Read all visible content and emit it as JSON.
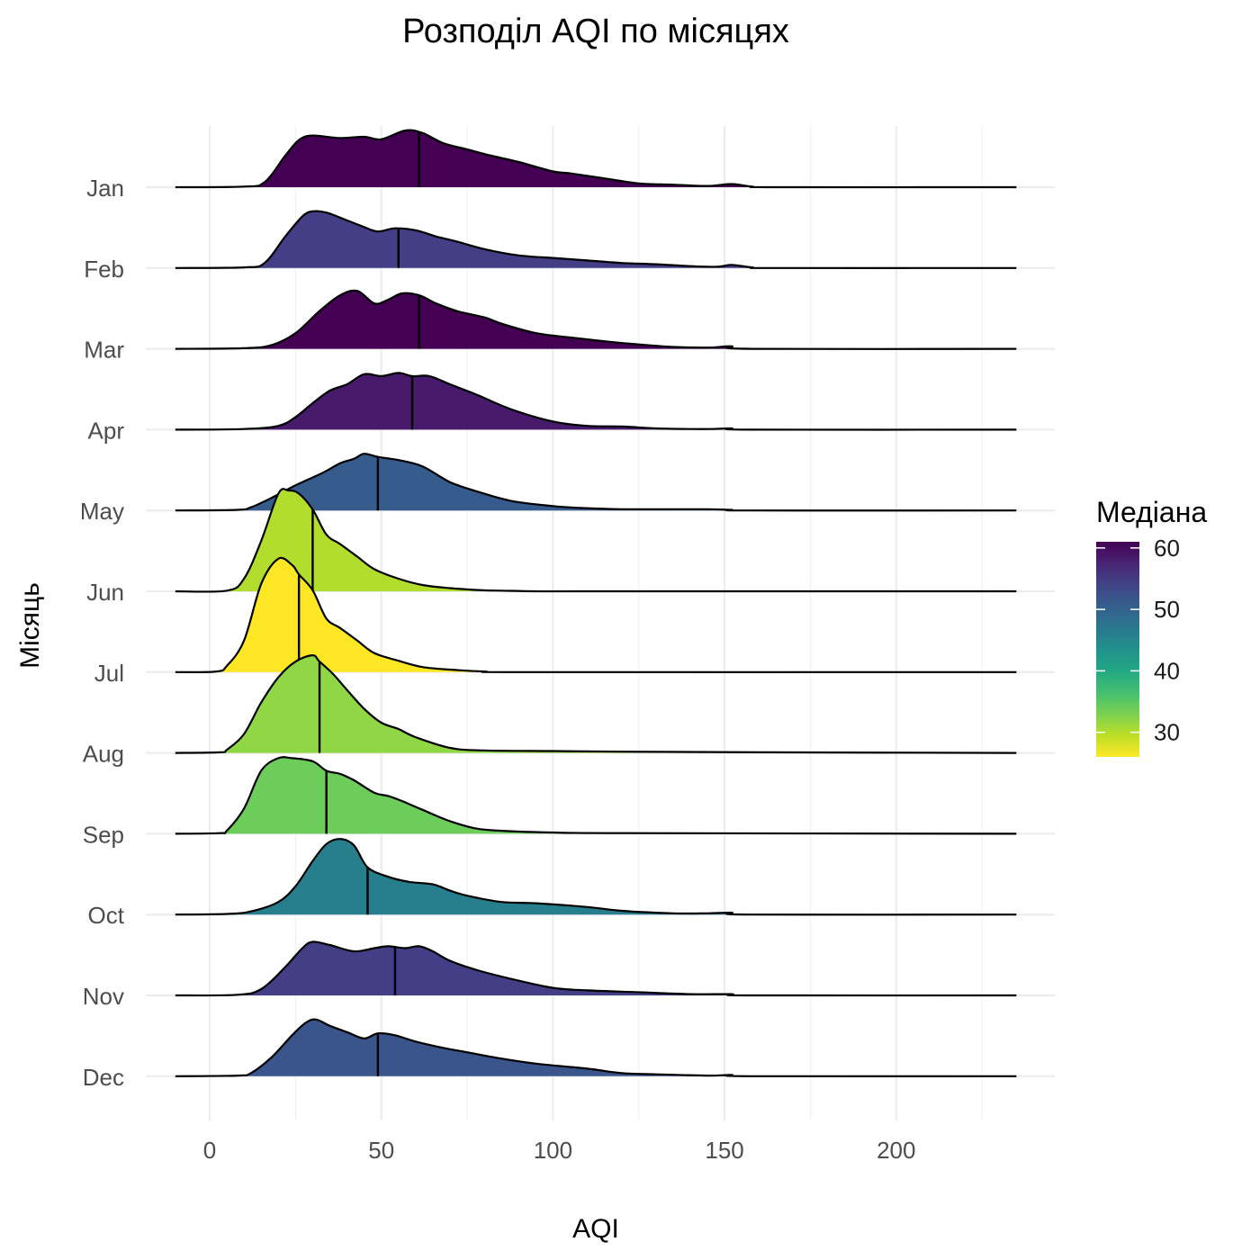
{
  "chart_data": {
    "type": "ridgeline",
    "title": "Розподіл AQI по місяцях",
    "xlabel": "AQI",
    "ylabel": "Місяць",
    "x_ticks": [
      0,
      50,
      100,
      150,
      200
    ],
    "xlim": [
      -10,
      235
    ],
    "grid": true,
    "legend": {
      "title": "Медіана",
      "position": "right",
      "ticks": [
        60,
        50,
        40,
        30
      ],
      "range": [
        26,
        61
      ],
      "palette": "viridis (reversed: high = dark purple, low = yellow)"
    },
    "series": [
      {
        "name": "Jan",
        "median": 61,
        "fill": "#440154",
        "x": [
          -10,
          10,
          16,
          22,
          26,
          30,
          38,
          45,
          50,
          57,
          62,
          68,
          75,
          82,
          90,
          100,
          105,
          115,
          125,
          135,
          145,
          152,
          158,
          165,
          235
        ],
        "y": [
          0,
          0.01,
          0.08,
          0.5,
          0.75,
          0.82,
          0.78,
          0.8,
          0.76,
          0.9,
          0.86,
          0.7,
          0.6,
          0.5,
          0.4,
          0.25,
          0.22,
          0.14,
          0.06,
          0.04,
          0.02,
          0.05,
          0.01,
          0,
          0
        ]
      },
      {
        "name": "Feb",
        "median": 55,
        "fill": "#433e85",
        "x": [
          -10,
          10,
          16,
          22,
          27,
          30,
          34,
          38,
          45,
          49,
          54,
          60,
          66,
          72,
          80,
          90,
          100,
          110,
          120,
          130,
          140,
          148,
          152,
          158,
          165,
          235
        ],
        "y": [
          0,
          0.01,
          0.08,
          0.5,
          0.82,
          0.9,
          0.88,
          0.8,
          0.65,
          0.58,
          0.63,
          0.6,
          0.5,
          0.42,
          0.3,
          0.2,
          0.16,
          0.12,
          0.08,
          0.06,
          0.03,
          0.02,
          0.05,
          0.01,
          0,
          0
        ]
      },
      {
        "name": "Mar",
        "median": 61,
        "fill": "#440154",
        "x": [
          -10,
          10,
          18,
          25,
          32,
          38,
          43,
          48,
          52,
          56,
          61,
          66,
          72,
          80,
          85,
          95,
          105,
          115,
          125,
          135,
          145,
          152,
          158,
          235
        ],
        "y": [
          0,
          0.01,
          0.06,
          0.25,
          0.6,
          0.85,
          0.92,
          0.72,
          0.78,
          0.88,
          0.85,
          0.72,
          0.6,
          0.5,
          0.4,
          0.25,
          0.18,
          0.12,
          0.07,
          0.03,
          0.02,
          0.04,
          0,
          0
        ]
      },
      {
        "name": "Apr",
        "median": 59,
        "fill": "#481a6c",
        "x": [
          -10,
          10,
          20,
          25,
          30,
          35,
          40,
          45,
          50,
          55,
          59,
          64,
          70,
          78,
          88,
          100,
          110,
          120,
          130,
          140,
          146,
          152,
          158,
          235
        ],
        "y": [
          0,
          0.01,
          0.06,
          0.2,
          0.42,
          0.62,
          0.72,
          0.88,
          0.85,
          0.9,
          0.85,
          0.85,
          0.72,
          0.55,
          0.32,
          0.13,
          0.06,
          0.05,
          0.02,
          0.01,
          0.01,
          0.02,
          0,
          0
        ]
      },
      {
        "name": "May",
        "median": 49,
        "fill": "#365c8d",
        "x": [
          -10,
          8,
          12,
          18,
          25,
          33,
          38,
          42,
          45,
          49,
          55,
          62,
          70,
          78,
          88,
          100,
          108,
          120,
          135,
          145,
          152,
          158,
          235
        ],
        "y": [
          0,
          0.01,
          0.05,
          0.2,
          0.4,
          0.6,
          0.75,
          0.82,
          0.9,
          0.85,
          0.8,
          0.7,
          0.45,
          0.3,
          0.15,
          0.07,
          0.04,
          0.02,
          0.02,
          0.02,
          0.01,
          0,
          0
        ]
      },
      {
        "name": "Jun",
        "median": 30,
        "fill": "#b2dd2d",
        "x": [
          -10,
          5,
          10,
          15,
          20,
          23,
          26,
          30,
          34,
          38,
          43,
          48,
          55,
          62,
          70,
          78,
          85,
          95,
          110,
          235
        ],
        "y": [
          0,
          0.01,
          0.2,
          0.8,
          1.55,
          1.6,
          1.55,
          1.3,
          0.9,
          0.75,
          0.55,
          0.35,
          0.2,
          0.1,
          0.05,
          0.02,
          0.01,
          0,
          0,
          0
        ]
      },
      {
        "name": "Jul",
        "median": 26,
        "fill": "#fde725",
        "x": [
          -10,
          2,
          5,
          10,
          15,
          20,
          24,
          26,
          30,
          34,
          38,
          43,
          48,
          55,
          62,
          70,
          80,
          95,
          235
        ],
        "y": [
          0,
          0.01,
          0.1,
          0.5,
          1.4,
          1.8,
          1.7,
          1.55,
          1.3,
          0.85,
          0.7,
          0.5,
          0.3,
          0.18,
          0.08,
          0.04,
          0.01,
          0,
          0
        ]
      },
      {
        "name": "Aug",
        "median": 32,
        "fill": "#8fd744",
        "x": [
          -10,
          3,
          5,
          10,
          15,
          20,
          25,
          30,
          32,
          36,
          40,
          45,
          50,
          55,
          60,
          70,
          80,
          100,
          120,
          160,
          235
        ],
        "y": [
          0,
          0.01,
          0.05,
          0.3,
          0.8,
          1.2,
          1.45,
          1.55,
          1.45,
          1.25,
          1.0,
          0.7,
          0.48,
          0.38,
          0.25,
          0.08,
          0.04,
          0.03,
          0.02,
          0.01,
          0
        ]
      },
      {
        "name": "Sep",
        "median": 34,
        "fill": "#6ccd5a",
        "x": [
          -10,
          3,
          5,
          10,
          15,
          20,
          24,
          30,
          34,
          38,
          42,
          48,
          52,
          56,
          62,
          70,
          78,
          88,
          100,
          120,
          235
        ],
        "y": [
          0,
          0.01,
          0.05,
          0.4,
          1.0,
          1.2,
          1.2,
          1.15,
          1.0,
          0.95,
          0.85,
          0.65,
          0.6,
          0.52,
          0.38,
          0.2,
          0.08,
          0.04,
          0.02,
          0.01,
          0
        ]
      },
      {
        "name": "Oct",
        "median": 46,
        "fill": "#277f8e",
        "x": [
          -10,
          5,
          12,
          20,
          25,
          30,
          34,
          38,
          42,
          46,
          52,
          58,
          65,
          70,
          75,
          85,
          95,
          110,
          120,
          135,
          145,
          152,
          158,
          235
        ],
        "y": [
          0,
          0.01,
          0.05,
          0.2,
          0.45,
          0.85,
          1.12,
          1.2,
          1.1,
          0.75,
          0.6,
          0.52,
          0.48,
          0.38,
          0.3,
          0.2,
          0.18,
          0.12,
          0.06,
          0.02,
          0.02,
          0.03,
          0,
          0
        ]
      },
      {
        "name": "Nov",
        "median": 54,
        "fill": "#433e85",
        "x": [
          -10,
          8,
          15,
          22,
          27,
          30,
          35,
          42,
          48,
          52,
          57,
          61,
          65,
          70,
          78,
          88,
          100,
          110,
          125,
          140,
          152,
          158,
          235
        ],
        "y": [
          0,
          0.01,
          0.1,
          0.45,
          0.75,
          0.85,
          0.8,
          0.7,
          0.75,
          0.78,
          0.75,
          0.78,
          0.7,
          0.55,
          0.4,
          0.26,
          0.12,
          0.08,
          0.05,
          0.02,
          0.02,
          0,
          0
        ]
      },
      {
        "name": "Dec",
        "median": 49,
        "fill": "#39558c",
        "x": [
          -10,
          8,
          12,
          18,
          24,
          28,
          31,
          35,
          40,
          45,
          49,
          54,
          60,
          68,
          75,
          85,
          95,
          110,
          120,
          130,
          145,
          152,
          158,
          235
        ],
        "y": [
          0,
          0.01,
          0.05,
          0.3,
          0.65,
          0.85,
          0.9,
          0.8,
          0.7,
          0.6,
          0.68,
          0.65,
          0.55,
          0.45,
          0.38,
          0.28,
          0.2,
          0.12,
          0.05,
          0.03,
          0.01,
          0.02,
          0,
          0
        ]
      }
    ]
  }
}
